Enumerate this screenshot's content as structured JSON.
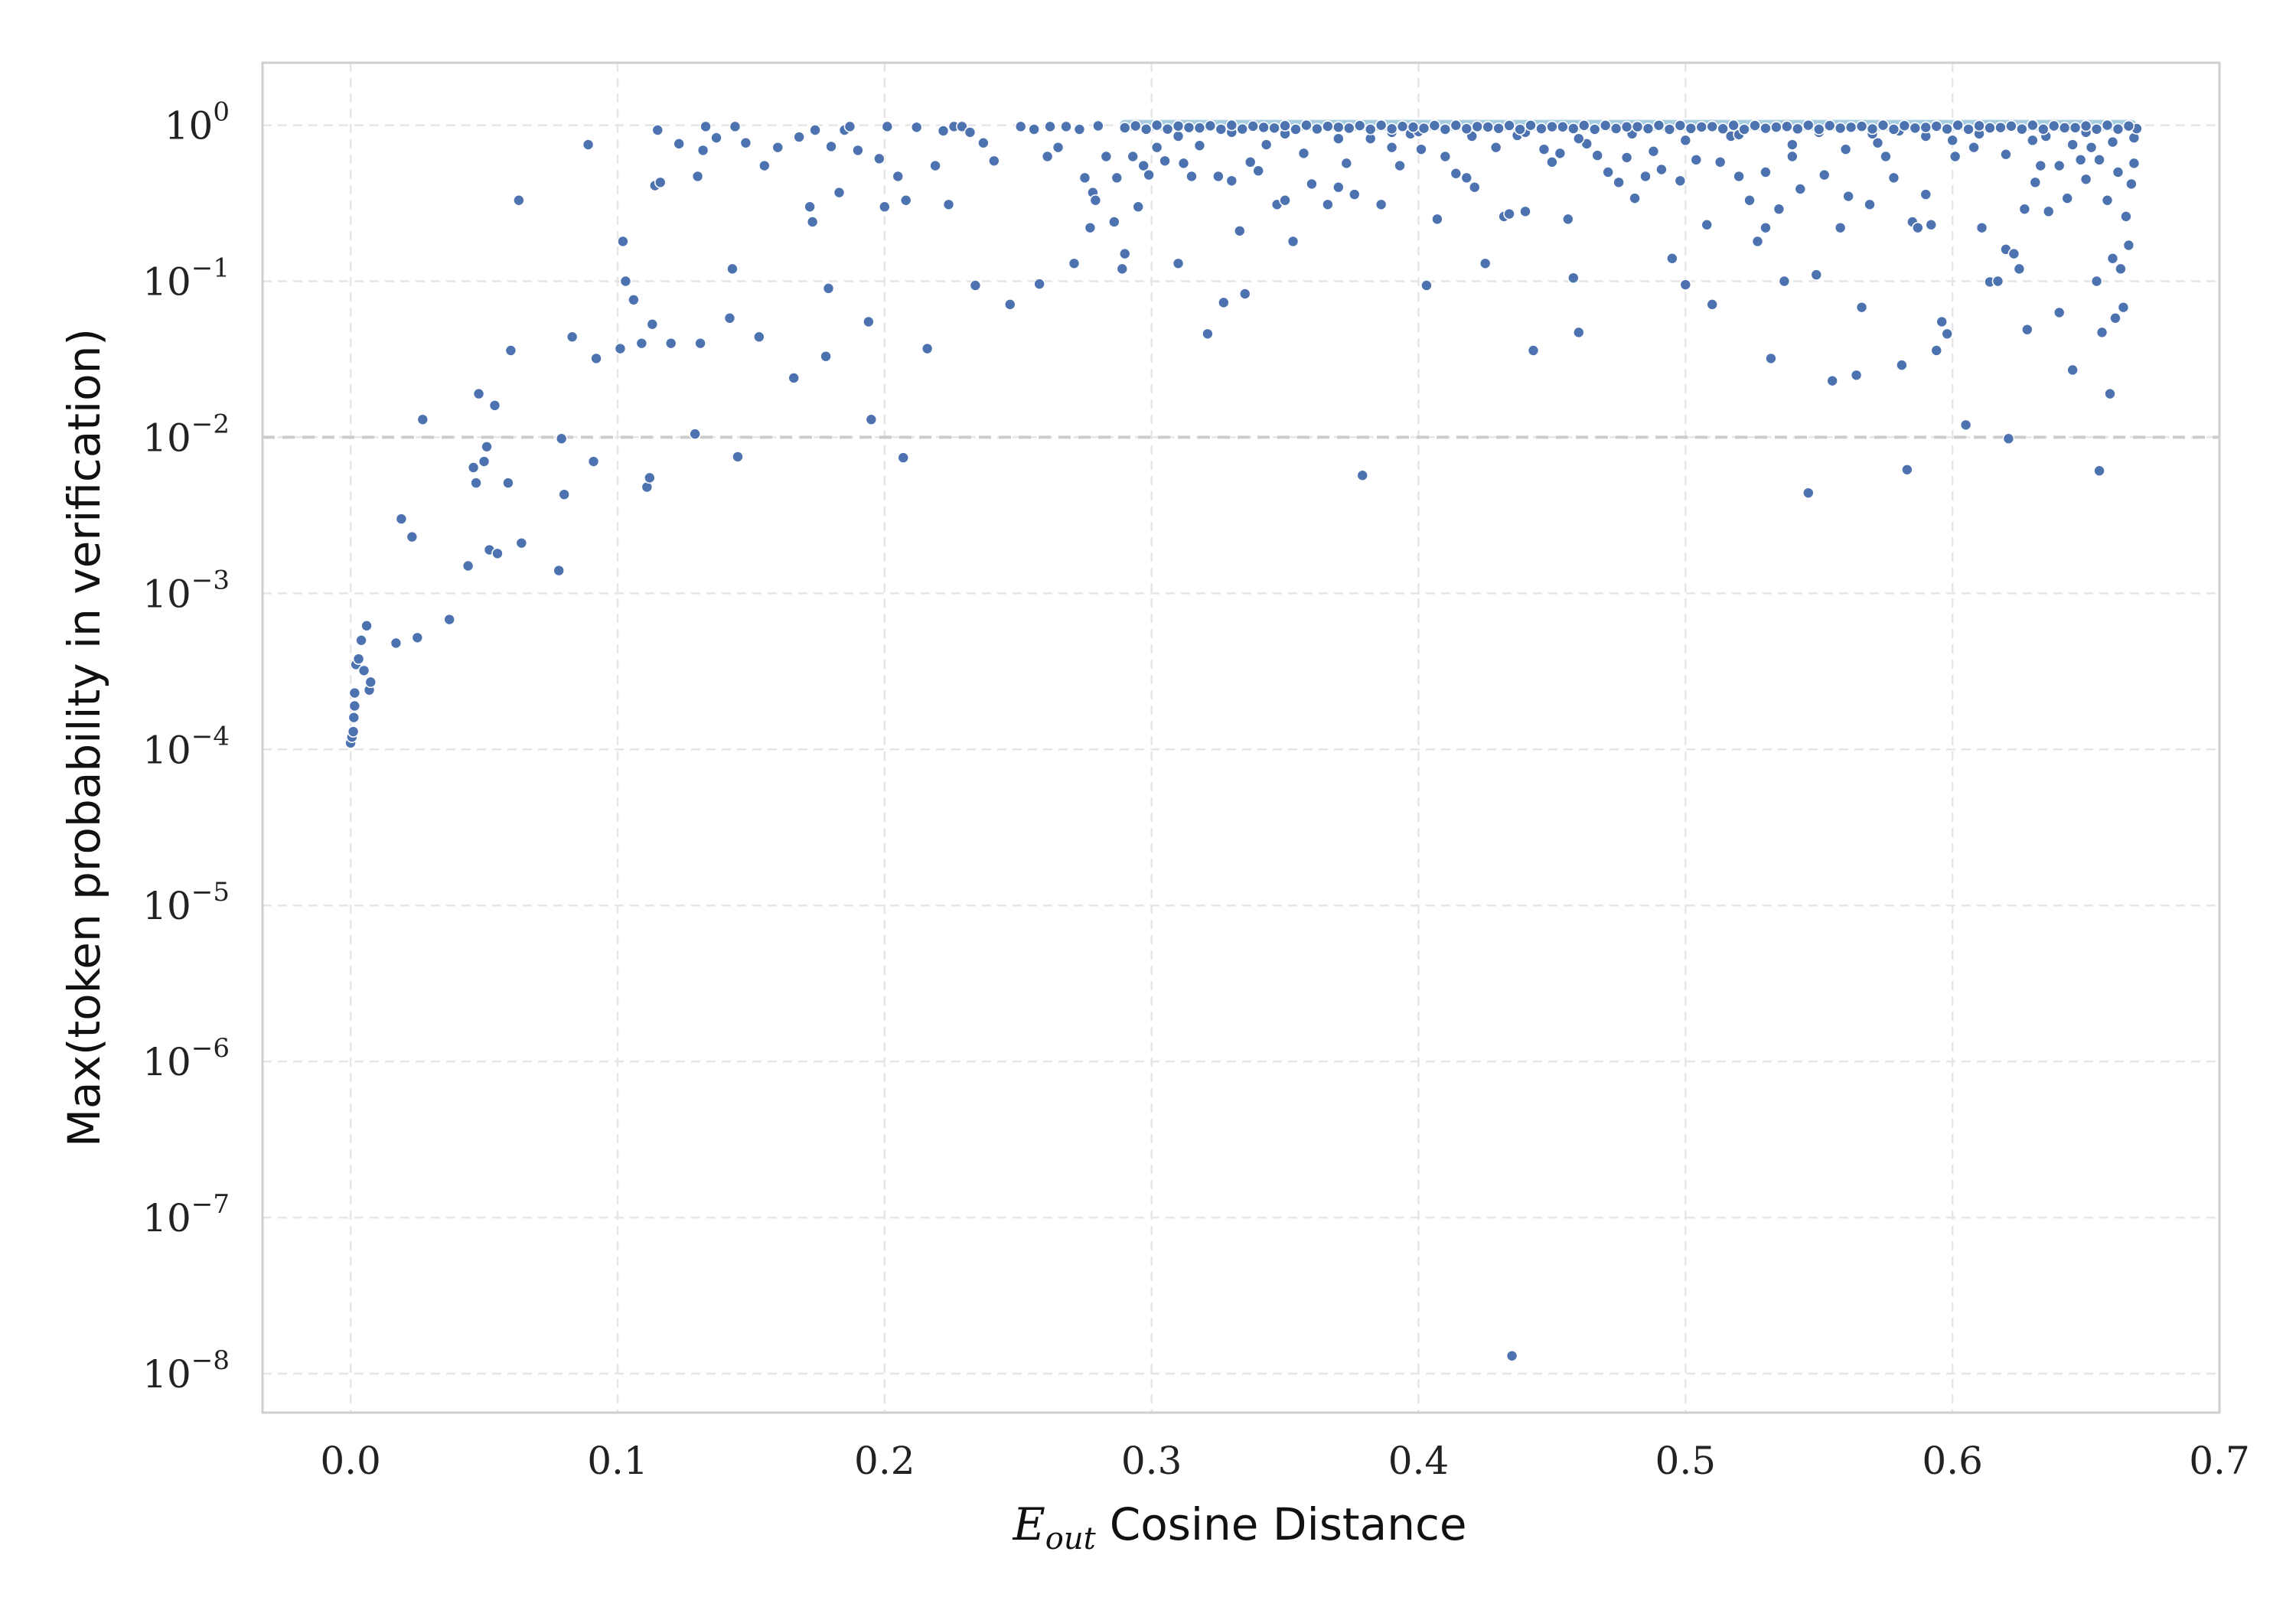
{
  "chart_data": {
    "type": "scatter",
    "xlabel_main": "E",
    "xlabel_sub": "out",
    "xlabel_rest": "Cosine Distance",
    "ylabel": "Max(token probability in verification)",
    "xlim": [
      -0.033,
      0.7
    ],
    "ylim_log10": [
      -8.25,
      0.4
    ],
    "yscale": "log",
    "grid": true,
    "x_ticks": [
      "0.0",
      "0.1",
      "0.2",
      "0.3",
      "0.4",
      "0.5",
      "0.6",
      "0.7"
    ],
    "y_ticks": [
      {
        "base": "10",
        "exp": "0"
      },
      {
        "base": "10",
        "exp": "−1"
      },
      {
        "base": "10",
        "exp": "−2"
      },
      {
        "base": "10",
        "exp": "−3"
      },
      {
        "base": "10",
        "exp": "−4"
      },
      {
        "base": "10",
        "exp": "−5"
      },
      {
        "base": "10",
        "exp": "−6"
      },
      {
        "base": "10",
        "exp": "−7"
      },
      {
        "base": "10",
        "exp": "−8"
      }
    ],
    "reference_line_y": 0.01,
    "saturation_band": {
      "x_start": 0.29,
      "x_end": 0.667,
      "y": 1.0
    },
    "colors": {
      "points": "#4c72b0",
      "band": "#a9cde0",
      "reference": "#cccccc"
    },
    "points": [
      [
        0.0,
        0.00011
      ],
      [
        0.0005,
        0.00012
      ],
      [
        0.001,
        0.00013
      ],
      [
        0.0012,
        0.00016
      ],
      [
        0.0015,
        0.00019
      ],
      [
        0.0015,
        0.00023
      ],
      [
        0.002,
        0.00035
      ],
      [
        0.003,
        0.00038
      ],
      [
        0.004,
        0.0005
      ],
      [
        0.005,
        0.00032
      ],
      [
        0.006,
        0.00062
      ],
      [
        0.007,
        0.00024
      ],
      [
        0.0075,
        0.00027
      ],
      [
        0.017,
        0.00048
      ],
      [
        0.019,
        0.003
      ],
      [
        0.023,
        0.0023
      ],
      [
        0.025,
        0.00052
      ],
      [
        0.027,
        0.013
      ],
      [
        0.037,
        0.00068
      ],
      [
        0.044,
        0.0015
      ],
      [
        0.046,
        0.0064
      ],
      [
        0.047,
        0.0051
      ],
      [
        0.048,
        0.019
      ],
      [
        0.05,
        0.007
      ],
      [
        0.051,
        0.0087
      ],
      [
        0.052,
        0.0019
      ],
      [
        0.054,
        0.016
      ],
      [
        0.055,
        0.0018
      ],
      [
        0.059,
        0.0051
      ],
      [
        0.06,
        0.036
      ],
      [
        0.063,
        0.33
      ],
      [
        0.064,
        0.0021
      ],
      [
        0.078,
        0.0014
      ],
      [
        0.079,
        0.0098
      ],
      [
        0.08,
        0.0043
      ],
      [
        0.083,
        0.044
      ],
      [
        0.089,
        0.75
      ],
      [
        0.091,
        0.007
      ],
      [
        0.092,
        0.032
      ],
      [
        0.101,
        0.037
      ],
      [
        0.102,
        0.18
      ],
      [
        0.103,
        0.1
      ],
      [
        0.106,
        0.076
      ],
      [
        0.109,
        0.04
      ],
      [
        0.111,
        0.0048
      ],
      [
        0.112,
        0.0055
      ],
      [
        0.113,
        0.053
      ],
      [
        0.114,
        0.41
      ],
      [
        0.115,
        0.93
      ],
      [
        0.116,
        0.43
      ],
      [
        0.12,
        0.04
      ],
      [
        0.123,
        0.76
      ],
      [
        0.129,
        0.0105
      ],
      [
        0.13,
        0.47
      ],
      [
        0.131,
        0.04
      ],
      [
        0.132,
        0.69
      ],
      [
        0.133,
        0.98
      ],
      [
        0.137,
        0.83
      ],
      [
        0.142,
        0.058
      ],
      [
        0.143,
        0.12
      ],
      [
        0.144,
        0.98
      ],
      [
        0.145,
        0.0075
      ],
      [
        0.148,
        0.77
      ],
      [
        0.153,
        0.044
      ],
      [
        0.155,
        0.55
      ],
      [
        0.16,
        0.72
      ],
      [
        0.166,
        0.024
      ],
      [
        0.168,
        0.84
      ],
      [
        0.172,
        0.3
      ],
      [
        0.173,
        0.24
      ],
      [
        0.174,
        0.93
      ],
      [
        0.178,
        0.033
      ],
      [
        0.179,
        0.09
      ],
      [
        0.18,
        0.73
      ],
      [
        0.183,
        0.37
      ],
      [
        0.185,
        0.93
      ],
      [
        0.187,
        0.98
      ],
      [
        0.19,
        0.69
      ],
      [
        0.194,
        0.055
      ],
      [
        0.195,
        0.013
      ],
      [
        0.198,
        0.61
      ],
      [
        0.2,
        0.3
      ],
      [
        0.201,
        0.98
      ],
      [
        0.205,
        0.47
      ],
      [
        0.207,
        0.0074
      ],
      [
        0.208,
        0.33
      ],
      [
        0.212,
        0.97
      ],
      [
        0.216,
        0.037
      ],
      [
        0.219,
        0.55
      ],
      [
        0.222,
        0.92
      ],
      [
        0.224,
        0.31
      ],
      [
        0.226,
        0.98
      ],
      [
        0.229,
        0.98
      ],
      [
        0.232,
        0.9
      ],
      [
        0.234,
        0.094
      ],
      [
        0.237,
        0.77
      ],
      [
        0.241,
        0.59
      ],
      [
        0.247,
        0.071
      ],
      [
        0.251,
        0.98
      ],
      [
        0.256,
        0.94
      ],
      [
        0.258,
        0.096
      ],
      [
        0.261,
        0.63
      ],
      [
        0.262,
        0.98
      ],
      [
        0.265,
        0.72
      ],
      [
        0.268,
        0.98
      ],
      [
        0.271,
        0.13
      ],
      [
        0.273,
        0.94
      ],
      [
        0.275,
        0.46
      ],
      [
        0.277,
        0.22
      ],
      [
        0.278,
        0.37
      ],
      [
        0.279,
        0.33
      ],
      [
        0.28,
        0.99
      ],
      [
        0.283,
        0.63
      ],
      [
        0.286,
        0.24
      ],
      [
        0.287,
        0.46
      ],
      [
        0.289,
        0.12
      ],
      [
        0.29,
        0.15
      ],
      [
        0.293,
        0.63
      ],
      [
        0.295,
        0.3
      ],
      [
        0.297,
        0.55
      ],
      [
        0.299,
        0.48
      ],
      [
        0.302,
        0.72
      ],
      [
        0.305,
        0.59
      ],
      [
        0.31,
        0.13
      ],
      [
        0.312,
        0.57
      ],
      [
        0.315,
        0.47
      ],
      [
        0.318,
        0.74
      ],
      [
        0.321,
        0.046
      ],
      [
        0.325,
        0.47
      ],
      [
        0.327,
        0.073
      ],
      [
        0.33,
        0.44
      ],
      [
        0.333,
        0.21
      ],
      [
        0.335,
        0.083
      ],
      [
        0.337,
        0.58
      ],
      [
        0.34,
        0.51
      ],
      [
        0.343,
        0.75
      ],
      [
        0.347,
        0.31
      ],
      [
        0.35,
        0.33
      ],
      [
        0.353,
        0.18
      ],
      [
        0.357,
        0.66
      ],
      [
        0.36,
        0.42
      ],
      [
        0.366,
        0.31
      ],
      [
        0.37,
        0.4
      ],
      [
        0.373,
        0.57
      ],
      [
        0.376,
        0.36
      ],
      [
        0.379,
        0.0057
      ],
      [
        0.382,
        0.82
      ],
      [
        0.386,
        0.31
      ],
      [
        0.39,
        0.72
      ],
      [
        0.393,
        0.55
      ],
      [
        0.397,
        0.88
      ],
      [
        0.401,
        0.7
      ],
      [
        0.403,
        0.094
      ],
      [
        0.407,
        0.25
      ],
      [
        0.41,
        0.63
      ],
      [
        0.414,
        0.49
      ],
      [
        0.418,
        0.46
      ],
      [
        0.421,
        0.4
      ],
      [
        0.425,
        0.13
      ],
      [
        0.429,
        0.72
      ],
      [
        0.432,
        0.26
      ],
      [
        0.434,
        0.27
      ],
      [
        0.435,
        1.3e-08
      ],
      [
        0.437,
        0.86
      ],
      [
        0.44,
        0.28
      ],
      [
        0.443,
        0.036
      ],
      [
        0.447,
        0.7
      ],
      [
        0.45,
        0.58
      ],
      [
        0.453,
        0.66
      ],
      [
        0.456,
        0.25
      ],
      [
        0.458,
        0.105
      ],
      [
        0.46,
        0.047
      ],
      [
        0.463,
        0.76
      ],
      [
        0.467,
        0.64
      ],
      [
        0.471,
        0.5
      ],
      [
        0.475,
        0.43
      ],
      [
        0.478,
        0.62
      ],
      [
        0.481,
        0.34
      ],
      [
        0.485,
        0.47
      ],
      [
        0.488,
        0.68
      ],
      [
        0.491,
        0.52
      ],
      [
        0.495,
        0.14
      ],
      [
        0.498,
        0.44
      ],
      [
        0.5,
        0.095
      ],
      [
        0.504,
        0.6
      ],
      [
        0.508,
        0.23
      ],
      [
        0.51,
        0.071
      ],
      [
        0.513,
        0.58
      ],
      [
        0.517,
        0.85
      ],
      [
        0.52,
        0.47
      ],
      [
        0.524,
        0.33
      ],
      [
        0.527,
        0.18
      ],
      [
        0.53,
        0.22
      ],
      [
        0.532,
        0.032
      ],
      [
        0.535,
        0.29
      ],
      [
        0.537,
        0.1
      ],
      [
        0.54,
        0.63
      ],
      [
        0.543,
        0.39
      ],
      [
        0.546,
        0.0044
      ],
      [
        0.549,
        0.11
      ],
      [
        0.552,
        0.48
      ],
      [
        0.555,
        0.023
      ],
      [
        0.558,
        0.22
      ],
      [
        0.561,
        0.35
      ],
      [
        0.564,
        0.025
      ],
      [
        0.566,
        0.068
      ],
      [
        0.569,
        0.31
      ],
      [
        0.572,
        0.77
      ],
      [
        0.575,
        0.63
      ],
      [
        0.578,
        0.46
      ],
      [
        0.581,
        0.029
      ],
      [
        0.583,
        0.0062
      ],
      [
        0.585,
        0.24
      ],
      [
        0.587,
        0.22
      ],
      [
        0.59,
        0.36
      ],
      [
        0.592,
        0.23
      ],
      [
        0.594,
        0.036
      ],
      [
        0.596,
        0.055
      ],
      [
        0.598,
        0.046
      ],
      [
        0.601,
        0.63
      ],
      [
        0.605,
        0.012
      ],
      [
        0.608,
        0.72
      ],
      [
        0.611,
        0.22
      ],
      [
        0.614,
        0.099
      ],
      [
        0.617,
        0.1
      ],
      [
        0.62,
        0.16
      ],
      [
        0.621,
        0.0098
      ],
      [
        0.623,
        0.15
      ],
      [
        0.625,
        0.12
      ],
      [
        0.627,
        0.29
      ],
      [
        0.628,
        0.049
      ],
      [
        0.631,
        0.43
      ],
      [
        0.633,
        0.55
      ],
      [
        0.636,
        0.28
      ],
      [
        0.64,
        0.063
      ],
      [
        0.643,
        0.34
      ],
      [
        0.645,
        0.027
      ],
      [
        0.648,
        0.6
      ],
      [
        0.65,
        0.45
      ],
      [
        0.652,
        0.72
      ],
      [
        0.654,
        0.1
      ],
      [
        0.655,
        0.0061
      ],
      [
        0.656,
        0.047
      ],
      [
        0.658,
        0.33
      ],
      [
        0.659,
        0.019
      ],
      [
        0.66,
        0.14
      ],
      [
        0.661,
        0.058
      ],
      [
        0.663,
        0.12
      ],
      [
        0.664,
        0.068
      ],
      [
        0.665,
        0.26
      ],
      [
        0.666,
        0.17
      ],
      [
        0.667,
        0.42
      ],
      [
        0.668,
        0.57
      ],
      [
        0.668,
        0.83
      ],
      [
        0.669,
        0.95
      ],
      [
        0.53,
        0.5
      ],
      [
        0.56,
        0.7
      ],
      [
        0.59,
        0.85
      ],
      [
        0.62,
        0.65
      ],
      [
        0.63,
        0.8
      ],
      [
        0.64,
        0.55
      ],
      [
        0.645,
        0.75
      ],
      [
        0.655,
        0.6
      ],
      [
        0.66,
        0.78
      ],
      [
        0.662,
        0.5
      ],
      [
        0.4,
        0.91
      ],
      [
        0.42,
        0.85
      ],
      [
        0.44,
        0.9
      ],
      [
        0.46,
        0.82
      ],
      [
        0.48,
        0.88
      ],
      [
        0.5,
        0.8
      ],
      [
        0.52,
        0.87
      ],
      [
        0.54,
        0.75
      ],
      [
        0.57,
        0.88
      ],
      [
        0.6,
        0.8
      ],
      [
        0.31,
        0.85
      ],
      [
        0.33,
        0.9
      ],
      [
        0.35,
        0.88
      ],
      [
        0.37,
        0.82
      ],
      [
        0.39,
        0.9
      ],
      [
        0.55,
        0.9
      ],
      [
        0.58,
        0.92
      ],
      [
        0.61,
        0.88
      ],
      [
        0.635,
        0.85
      ],
      [
        0.65,
        0.9
      ]
    ]
  }
}
